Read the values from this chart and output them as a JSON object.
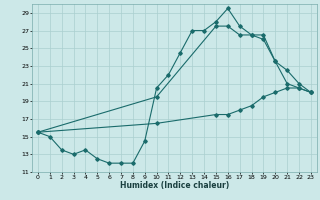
{
  "title": "",
  "xlabel": "Humidex (Indice chaleur)",
  "bg_color": "#cce8e8",
  "grid_color": "#aacfcf",
  "line_color": "#1a6b6b",
  "xlim": [
    -0.5,
    23.5
  ],
  "ylim": [
    11,
    30
  ],
  "yticks": [
    11,
    13,
    15,
    17,
    19,
    21,
    23,
    25,
    27,
    29
  ],
  "xticks": [
    0,
    1,
    2,
    3,
    4,
    5,
    6,
    7,
    8,
    9,
    10,
    11,
    12,
    13,
    14,
    15,
    16,
    17,
    18,
    19,
    20,
    21,
    22,
    23
  ],
  "line1_x": [
    0,
    1,
    2,
    3,
    4,
    5,
    6,
    7,
    8,
    9,
    10,
    11,
    12,
    13,
    14,
    15,
    16,
    17,
    18,
    19,
    20,
    21,
    22,
    23
  ],
  "line1_y": [
    15.5,
    15.0,
    13.5,
    13.0,
    13.5,
    12.5,
    12.0,
    12.0,
    12.0,
    14.5,
    20.5,
    22.0,
    24.5,
    27.0,
    27.0,
    28.0,
    29.5,
    27.5,
    26.5,
    26.5,
    23.5,
    22.5,
    21.0,
    20.0
  ],
  "line2_x": [
    0,
    10,
    15,
    16,
    17,
    18,
    19,
    20,
    21,
    22,
    23
  ],
  "line2_y": [
    15.5,
    19.5,
    27.5,
    27.5,
    26.5,
    26.5,
    26.0,
    23.5,
    21.0,
    20.5,
    20.0
  ],
  "line3_x": [
    0,
    10,
    15,
    16,
    17,
    18,
    19,
    20,
    21,
    22,
    23
  ],
  "line3_y": [
    15.5,
    16.5,
    17.5,
    17.5,
    18.0,
    18.5,
    19.5,
    20.0,
    20.5,
    20.5,
    20.0
  ]
}
